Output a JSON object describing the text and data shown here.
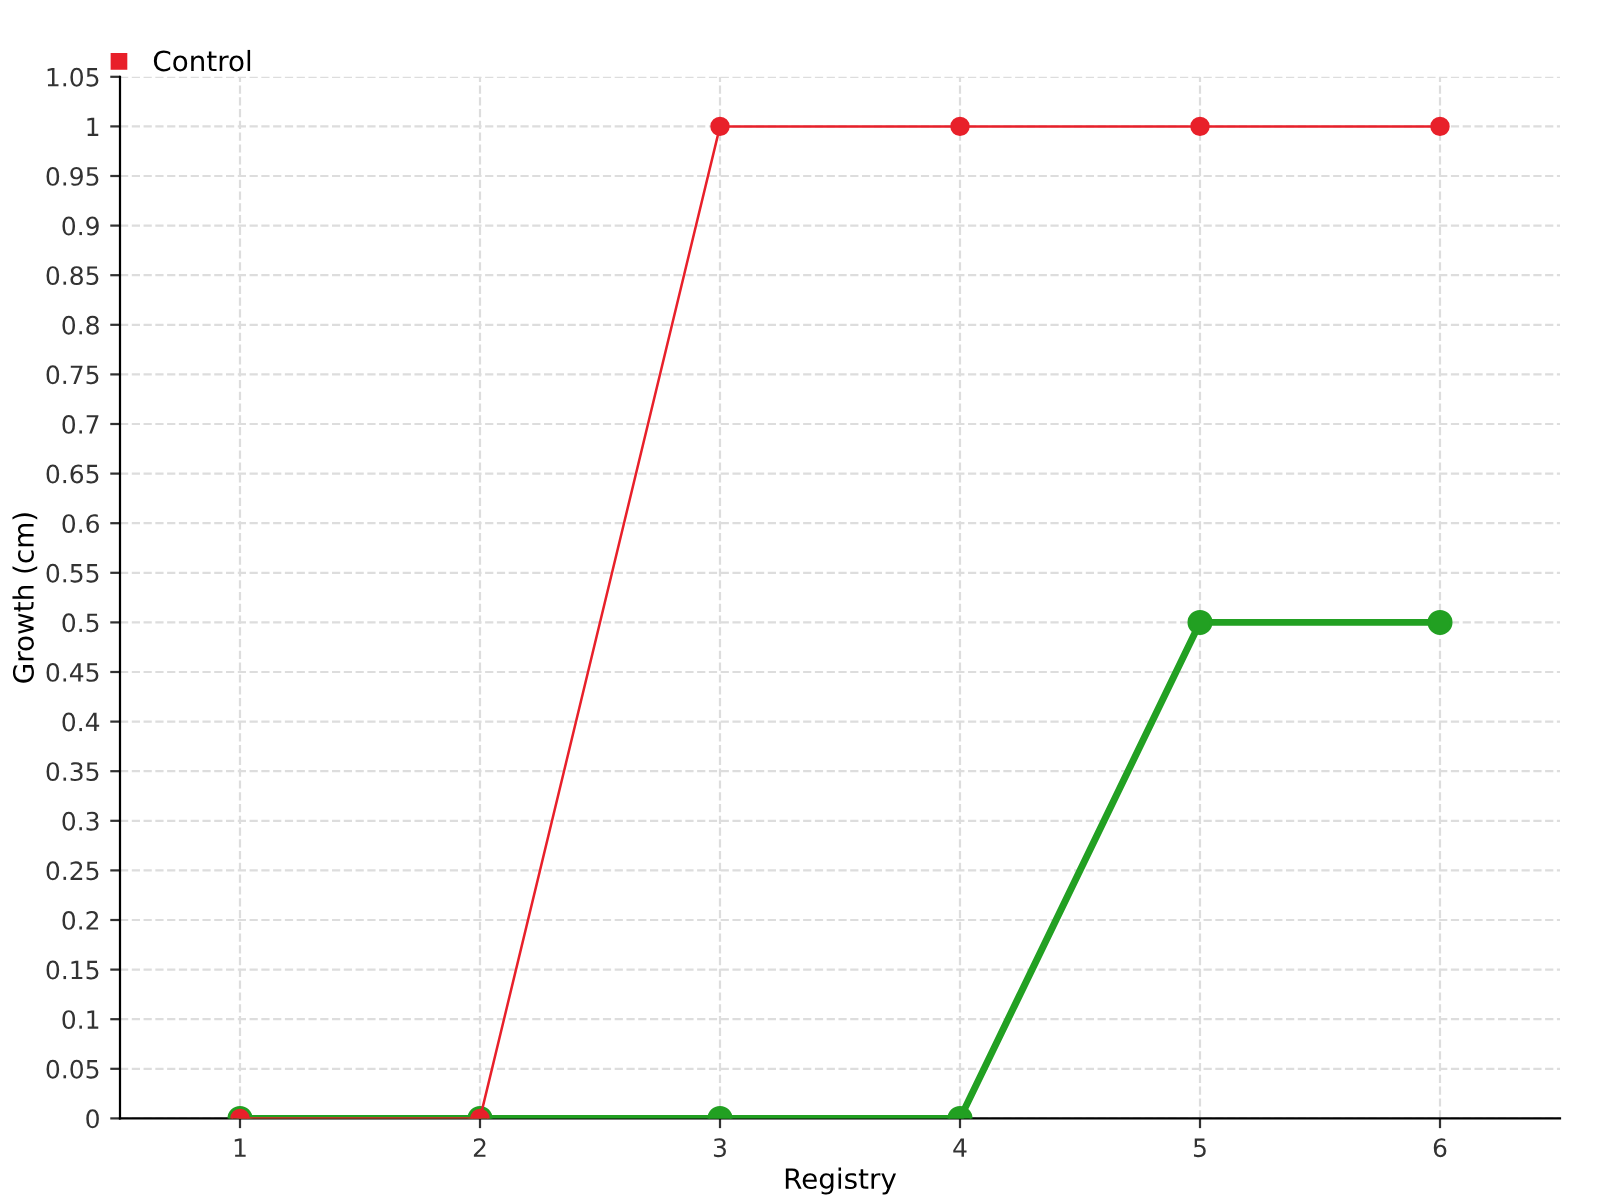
{
  "chart_data": {
    "type": "line",
    "xlabel": "Registry",
    "ylabel": "Growth (cm)",
    "x": [
      1,
      2,
      3,
      4,
      5,
      6
    ],
    "series": [
      {
        "color": "#22a022",
        "values": [
          0,
          0,
          0,
          0,
          0.5,
          0.5
        ]
      },
      {
        "name": "Control",
        "color": "#e8202a",
        "values": [
          0,
          0,
          1,
          1,
          1,
          1
        ]
      }
    ],
    "xlim": [
      0.5,
      6.5
    ],
    "xticks": [
      1,
      2,
      3,
      4,
      5,
      6
    ],
    "ylim": [
      0,
      1.05
    ],
    "yticks": [
      0,
      0.05,
      0.1,
      0.15,
      0.2,
      0.25,
      0.3,
      0.35,
      0.4,
      0.45,
      0.5,
      0.55,
      0.6,
      0.65,
      0.7,
      0.75,
      0.8,
      0.85,
      0.9,
      0.95,
      1,
      1.05
    ],
    "grid": true,
    "legend": "top left",
    "marker": "circle",
    "line_style": "solid"
  }
}
